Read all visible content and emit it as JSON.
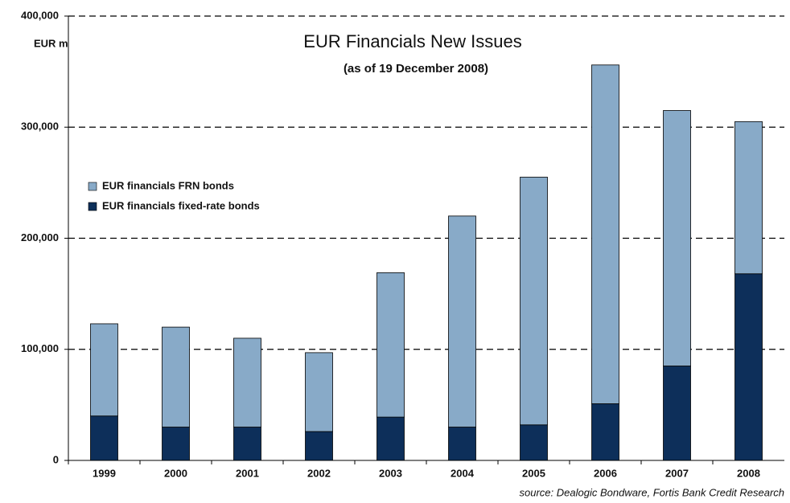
{
  "chart_data": {
    "type": "stacked-bar",
    "title": "EUR Financials New Issues",
    "subtitle": "(as of 19 December  2008)",
    "y_label": "EUR m",
    "source": "source: Dealogic Bondware, Fortis Bank Credit Research",
    "categories": [
      "1999",
      "2000",
      "2001",
      "2002",
      "2003",
      "2004",
      "2005",
      "2006",
      "2007",
      "2008"
    ],
    "series": [
      {
        "name": "EUR financials fixed-rate bonds",
        "color": "#0d2f5a",
        "values": [
          40000,
          30000,
          30000,
          26000,
          39000,
          30000,
          32000,
          51000,
          85000,
          168000
        ]
      },
      {
        "name": "EUR financials FRN bonds",
        "color": "#88aac8",
        "values": [
          83000,
          90000,
          80000,
          71000,
          130000,
          190000,
          223000,
          305000,
          230000,
          137000
        ]
      }
    ],
    "ylim": [
      0,
      400000
    ],
    "yticks": [
      0,
      {
        "value": 100000,
        "label": "100,000"
      },
      {
        "value": 200000,
        "label": "200,000"
      },
      {
        "value": 300000,
        "label": "300,000"
      },
      {
        "value": 400000,
        "label": "400,000"
      }
    ],
    "grid": true
  }
}
